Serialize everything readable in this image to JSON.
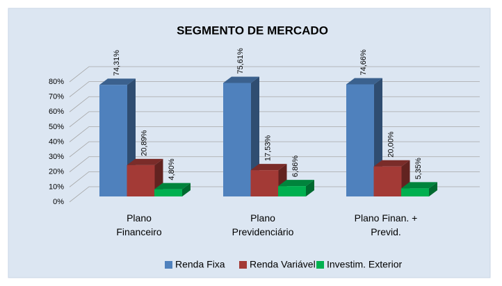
{
  "chart_data": {
    "type": "bar3d",
    "title": "SEGMENTO DE MERCADO",
    "categories": [
      "Plano\nFinanceiro",
      "Plano\nPrevidenciário",
      "Plano Finan. +\nPrevid."
    ],
    "series": [
      {
        "name": "Renda Fixa",
        "color": "#4f81bd",
        "values": [
          74.31,
          75.61,
          74.66
        ],
        "value_labels": [
          "74,31%",
          "75,61%",
          "74,66%"
        ]
      },
      {
        "name": "Renda Variável",
        "color": "#a33a36",
        "values": [
          20.89,
          17.53,
          20.0
        ],
        "value_labels": [
          "20,89%",
          "17,53%",
          "20,00%"
        ]
      },
      {
        "name": "Investim. Exterior",
        "color": "#00b050",
        "values": [
          4.8,
          6.86,
          5.35
        ],
        "value_labels": [
          "4,80%",
          "6,86%",
          "5,35%"
        ]
      }
    ],
    "ylim": [
      0,
      80
    ],
    "yticks": [
      {
        "value": 0,
        "label": "0%"
      },
      {
        "value": 10,
        "label": "10%"
      },
      {
        "value": 20,
        "label": "20%"
      },
      {
        "value": 30,
        "label": "30%"
      },
      {
        "value": 40,
        "label": "40%"
      },
      {
        "value": 50,
        "label": "50%"
      },
      {
        "value": 60,
        "label": "60%"
      },
      {
        "value": 70,
        "label": "70%"
      },
      {
        "value": 80,
        "label": "80%"
      }
    ],
    "grid": true,
    "legend": "bottom"
  }
}
